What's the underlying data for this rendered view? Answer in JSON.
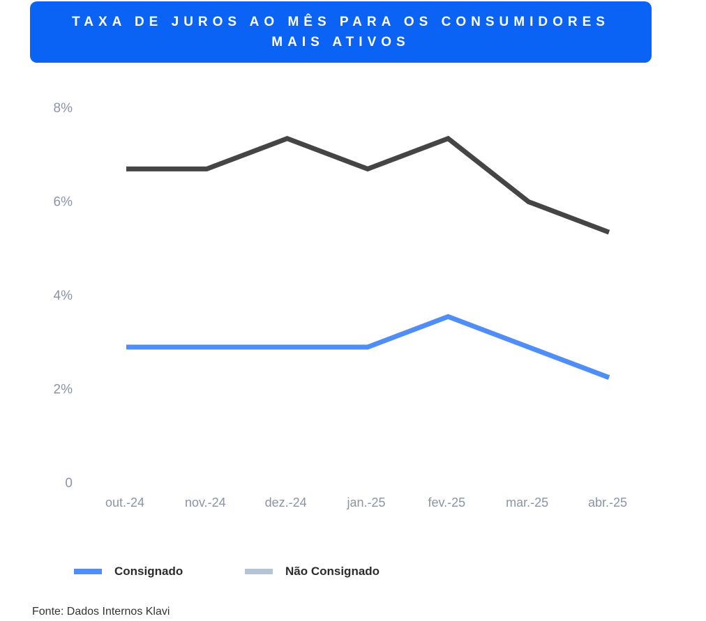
{
  "header": {
    "title_line1": "TAXA DE JUROS AO MÊS PARA OS CONSUMIDORES",
    "title_line2": "MAIS ATIVOS"
  },
  "colors": {
    "banner": "#0a63f5",
    "consignado": "#4f8df7",
    "nao_consignado_line": "#454545",
    "nao_consignado_legend": "#b2c4d6",
    "axis_text": "#8b93a7"
  },
  "chart_data": {
    "type": "line",
    "title": "TAXA DE JUROS AO MÊS PARA OS CONSUMIDORES MAIS ATIVOS",
    "categories": [
      "out.-24",
      "nov.-24",
      "dez.-24",
      "jan.-25",
      "fev.-25",
      "mar.-25",
      "abr.-25"
    ],
    "series": [
      {
        "name": "Não Consignado",
        "values": [
          6.7,
          6.7,
          7.35,
          6.7,
          7.35,
          6.0,
          5.35
        ]
      },
      {
        "name": "Consignado",
        "values": [
          2.9,
          2.9,
          2.9,
          2.9,
          3.55,
          2.9,
          2.25
        ]
      }
    ],
    "yticks": [
      0,
      2,
      4,
      6,
      8
    ],
    "ytick_labels": [
      "0",
      "2%",
      "4%",
      "6%",
      "8%"
    ],
    "ylim": [
      0,
      8
    ],
    "xlabel": "",
    "ylabel": "",
    "grid": false,
    "legend_position": "bottom-left"
  },
  "legend": {
    "items": [
      {
        "label": "Consignado"
      },
      {
        "label": "Não Consignado"
      }
    ]
  },
  "footer": {
    "source": "Fonte: Dados Internos Klavi"
  }
}
